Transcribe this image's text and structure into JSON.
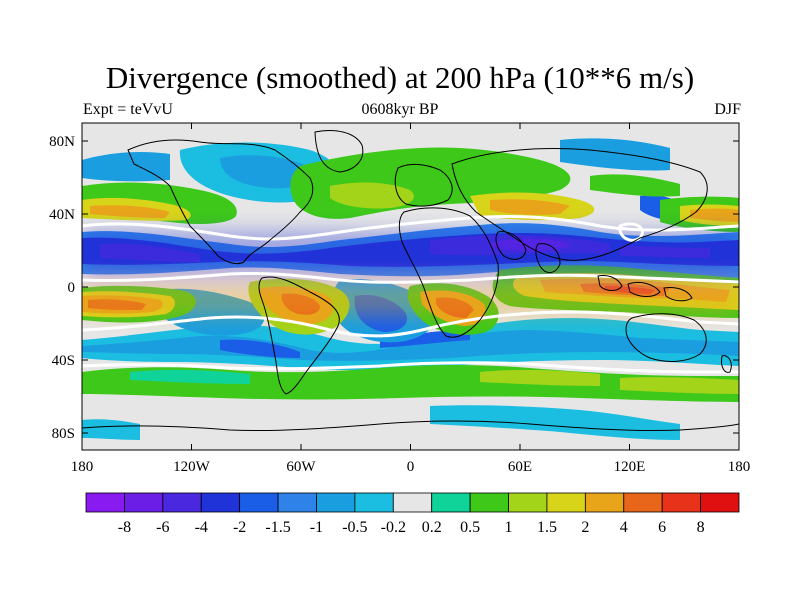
{
  "title": "Divergence (smoothed) at 200 hPa (10**6 m/s)",
  "subtitle_left": "Expt = teVvU",
  "subtitle_center": "0608kyr BP",
  "subtitle_right": "DJF",
  "y_ticks": [
    "80N",
    "40N",
    "0",
    "40S",
    "80S"
  ],
  "x_ticks": [
    "180",
    "120W",
    "60W",
    "0",
    "60E",
    "120E",
    "180"
  ],
  "colorbar": {
    "labels": [
      "-8",
      "-6",
      "-4",
      "-2",
      "-1.5",
      "-1",
      "-0.5",
      "-0.2",
      "0.2",
      "0.5",
      "1",
      "1.5",
      "2",
      "4",
      "6",
      "8"
    ],
    "colors": [
      "#8a1bf0",
      "#6b1ee6",
      "#4a28e0",
      "#2033d8",
      "#1a5ee8",
      "#2f82e8",
      "#1a9ee0",
      "#1bbde0",
      "#e6e6e6",
      "#10d39a",
      "#3ec81a",
      "#a3d41a",
      "#d8d41a",
      "#e8a51a",
      "#e8661a",
      "#e8321a",
      "#e01010"
    ]
  },
  "colors": {
    "zero_contour": "#ffffff",
    "coastline": "#000000",
    "background": "#e6e6e6"
  }
}
